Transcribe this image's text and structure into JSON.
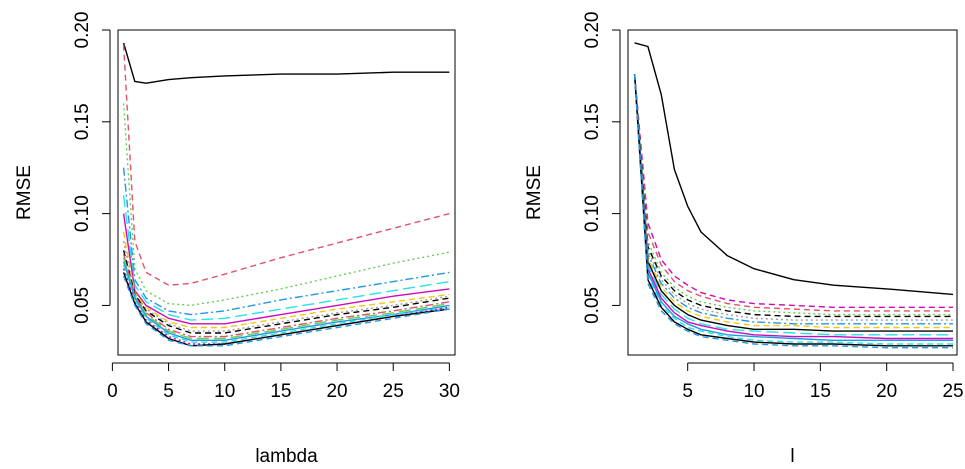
{
  "chart_data": [
    {
      "type": "line",
      "title": "",
      "xlabel": "lambda",
      "ylabel": "RMSE",
      "xlim": [
        0.5,
        30.5
      ],
      "ylim": [
        0.023,
        0.2
      ],
      "xticks": [
        0,
        5,
        10,
        15,
        20,
        25,
        30
      ],
      "yticks": [
        0.05,
        0.1,
        0.15,
        0.2
      ],
      "ytick_labels": [
        "0.05",
        "0.10",
        "0.15",
        "0.20"
      ],
      "grid": false,
      "legend": "none",
      "x": [
        1,
        2,
        3,
        5,
        7,
        10,
        15,
        20,
        25,
        30
      ],
      "series": [
        {
          "color": "#000000",
          "dash": "",
          "values": [
            0.193,
            0.172,
            0.171,
            0.173,
            0.174,
            0.175,
            0.176,
            0.176,
            0.177,
            0.177
          ]
        },
        {
          "color": "#DF536B",
          "dash": "6,4",
          "values": [
            0.192,
            0.085,
            0.068,
            0.061,
            0.062,
            0.067,
            0.076,
            0.084,
            0.092,
            0.1
          ]
        },
        {
          "color": "#61D04F",
          "dash": "2,3",
          "values": [
            0.16,
            0.07,
            0.058,
            0.051,
            0.05,
            0.053,
            0.059,
            0.066,
            0.073,
            0.079
          ]
        },
        {
          "color": "#2297E6",
          "dash": "8,3,2,3",
          "values": [
            0.125,
            0.064,
            0.054,
            0.047,
            0.045,
            0.047,
            0.053,
            0.058,
            0.063,
            0.068
          ]
        },
        {
          "color": "#28E2E5",
          "dash": "12,5",
          "values": [
            0.11,
            0.061,
            0.052,
            0.045,
            0.042,
            0.043,
            0.048,
            0.053,
            0.058,
            0.063
          ]
        },
        {
          "color": "#CD0BBC",
          "dash": "",
          "values": [
            0.1,
            0.058,
            0.05,
            0.043,
            0.04,
            0.04,
            0.045,
            0.05,
            0.055,
            0.059
          ]
        },
        {
          "color": "#F5C710",
          "dash": "6,4",
          "values": [
            0.09,
            0.057,
            0.049,
            0.041,
            0.038,
            0.038,
            0.043,
            0.048,
            0.052,
            0.056
          ]
        },
        {
          "color": "#9E9E9E",
          "dash": "2,3",
          "values": [
            0.085,
            0.056,
            0.048,
            0.04,
            0.036,
            0.036,
            0.041,
            0.046,
            0.05,
            0.055
          ]
        },
        {
          "color": "#000000",
          "dash": "6,4",
          "values": [
            0.08,
            0.056,
            0.047,
            0.039,
            0.035,
            0.035,
            0.04,
            0.045,
            0.049,
            0.054
          ]
        },
        {
          "color": "#DF536B",
          "dash": "8,3,2,3",
          "values": [
            0.078,
            0.055,
            0.046,
            0.037,
            0.033,
            0.033,
            0.038,
            0.043,
            0.047,
            0.052
          ]
        },
        {
          "color": "#61D04F",
          "dash": "12,5",
          "values": [
            0.076,
            0.055,
            0.045,
            0.036,
            0.032,
            0.032,
            0.037,
            0.042,
            0.046,
            0.051
          ]
        },
        {
          "color": "#2297E6",
          "dash": "",
          "values": [
            0.074,
            0.054,
            0.044,
            0.035,
            0.031,
            0.031,
            0.036,
            0.041,
            0.045,
            0.05
          ]
        },
        {
          "color": "#28E2E5",
          "dash": "6,4",
          "values": [
            0.072,
            0.053,
            0.043,
            0.034,
            0.03,
            0.03,
            0.035,
            0.04,
            0.045,
            0.049
          ]
        },
        {
          "color": "#CD0BBC",
          "dash": "2,3",
          "values": [
            0.07,
            0.052,
            0.042,
            0.033,
            0.029,
            0.029,
            0.034,
            0.039,
            0.044,
            0.049
          ]
        },
        {
          "color": "#000000",
          "dash": "",
          "values": [
            0.068,
            0.051,
            0.041,
            0.032,
            0.028,
            0.029,
            0.034,
            0.039,
            0.044,
            0.048
          ]
        },
        {
          "color": "#2297E6",
          "dash": "6,4",
          "values": [
            0.066,
            0.05,
            0.04,
            0.031,
            0.028,
            0.028,
            0.033,
            0.038,
            0.043,
            0.048
          ]
        }
      ]
    },
    {
      "type": "line",
      "title": "",
      "xlabel": "l",
      "ylabel": "RMSE",
      "xlim": [
        0.5,
        25.3
      ],
      "ylim": [
        0.023,
        0.2
      ],
      "xticks": [
        5,
        10,
        15,
        20,
        25
      ],
      "yticks": [
        0.05,
        0.1,
        0.15,
        0.2
      ],
      "ytick_labels": [
        "0.05",
        "0.10",
        "0.15",
        "0.20"
      ],
      "grid": false,
      "legend": "none",
      "x": [
        1,
        2,
        3,
        4,
        5,
        6,
        8,
        10,
        13,
        16,
        20,
        25
      ],
      "series": [
        {
          "color": "#000000",
          "dash": "",
          "values": [
            0.193,
            0.191,
            0.165,
            0.124,
            0.104,
            0.09,
            0.077,
            0.07,
            0.064,
            0.061,
            0.059,
            0.056
          ]
        },
        {
          "color": "#CD0BBC",
          "dash": "6,4",
          "values": [
            0.176,
            0.095,
            0.075,
            0.066,
            0.061,
            0.057,
            0.053,
            0.051,
            0.05,
            0.049,
            0.049,
            0.049
          ]
        },
        {
          "color": "#DF536B",
          "dash": "6,4",
          "values": [
            0.176,
            0.09,
            0.072,
            0.063,
            0.058,
            0.055,
            0.051,
            0.049,
            0.048,
            0.047,
            0.047,
            0.047
          ]
        },
        {
          "color": "#61D04F",
          "dash": "2,3",
          "values": [
            0.176,
            0.085,
            0.068,
            0.06,
            0.055,
            0.052,
            0.049,
            0.047,
            0.046,
            0.045,
            0.045,
            0.045
          ]
        },
        {
          "color": "#000000",
          "dash": "6,4",
          "values": [
            0.176,
            0.082,
            0.066,
            0.058,
            0.053,
            0.05,
            0.047,
            0.045,
            0.044,
            0.044,
            0.044,
            0.044
          ]
        },
        {
          "color": "#9E9E9E",
          "dash": "2,3",
          "values": [
            0.176,
            0.08,
            0.064,
            0.056,
            0.051,
            0.048,
            0.045,
            0.043,
            0.042,
            0.042,
            0.042,
            0.042
          ]
        },
        {
          "color": "#2297E6",
          "dash": "8,3,2,3",
          "values": [
            0.176,
            0.078,
            0.062,
            0.054,
            0.049,
            0.046,
            0.043,
            0.041,
            0.04,
            0.04,
            0.04,
            0.04
          ]
        },
        {
          "color": "#F5C710",
          "dash": "6,4",
          "values": [
            0.176,
            0.076,
            0.06,
            0.052,
            0.047,
            0.044,
            0.041,
            0.039,
            0.039,
            0.038,
            0.038,
            0.038
          ]
        },
        {
          "color": "#000000",
          "dash": "",
          "values": [
            0.176,
            0.074,
            0.058,
            0.05,
            0.045,
            0.042,
            0.039,
            0.037,
            0.037,
            0.036,
            0.036,
            0.036
          ]
        },
        {
          "color": "#28E2E5",
          "dash": "12,5",
          "values": [
            0.176,
            0.072,
            0.056,
            0.048,
            0.043,
            0.04,
            0.037,
            0.036,
            0.035,
            0.034,
            0.034,
            0.034
          ]
        },
        {
          "color": "#CD0BBC",
          "dash": "",
          "values": [
            0.176,
            0.07,
            0.054,
            0.046,
            0.041,
            0.039,
            0.036,
            0.034,
            0.033,
            0.033,
            0.032,
            0.032
          ]
        },
        {
          "color": "#2297E6",
          "dash": "",
          "values": [
            0.176,
            0.068,
            0.052,
            0.044,
            0.04,
            0.037,
            0.034,
            0.033,
            0.032,
            0.031,
            0.031,
            0.031
          ]
        },
        {
          "color": "#28E2E5",
          "dash": "6,4",
          "values": [
            0.176,
            0.066,
            0.05,
            0.043,
            0.038,
            0.036,
            0.033,
            0.031,
            0.03,
            0.03,
            0.029,
            0.029
          ]
        },
        {
          "color": "#000000",
          "dash": "",
          "values": [
            0.176,
            0.064,
            0.049,
            0.041,
            0.037,
            0.034,
            0.032,
            0.03,
            0.029,
            0.029,
            0.028,
            0.028
          ]
        },
        {
          "color": "#2297E6",
          "dash": "6,4",
          "values": [
            0.176,
            0.062,
            0.047,
            0.04,
            0.036,
            0.033,
            0.031,
            0.029,
            0.028,
            0.028,
            0.027,
            0.027
          ]
        }
      ]
    }
  ]
}
